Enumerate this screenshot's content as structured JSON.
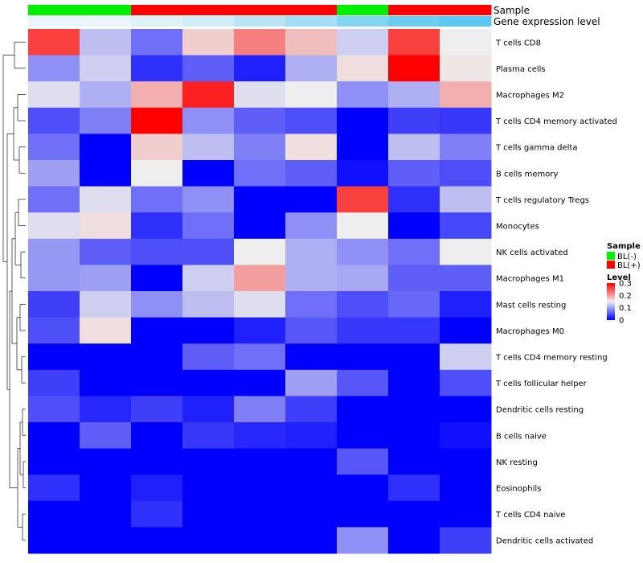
{
  "chart_data": {
    "type": "heatmap",
    "annotation_tracks": [
      {
        "name": "Sample",
        "values": [
          "BL(-)",
          "BL(-)",
          "BL(+)",
          "BL(+)",
          "BL(+)",
          "BL(+)",
          "BL(-)",
          "BL(+)",
          "BL(+)"
        ]
      },
      {
        "name": "Gene expression level",
        "values": [
          0.02,
          0.02,
          0.06,
          0.12,
          0.22,
          0.32,
          0.45,
          0.55,
          0.62
        ]
      }
    ],
    "rows": [
      "T cells CD8",
      "Plasma cells",
      "Macrophages M2",
      "T cells CD4 memory activated",
      "T cells gamma delta",
      "B cells memory",
      "T cells regulatory  Tregs",
      "Monocytes",
      "NK cells activated",
      "Macrophages M1",
      "Mast cells resting",
      "Macrophages M0",
      "T cells CD4 memory resting",
      "T cells follicular helper",
      "Dendritic cells resting",
      "B cells naive",
      "NK resting",
      "Eosinophils",
      "T cells CD4 naive",
      "Dendritic cells activated"
    ],
    "values": [
      [
        0.26,
        0.12,
        0.07,
        0.17,
        0.22,
        0.18,
        0.13,
        0.26,
        0.15
      ],
      [
        0.09,
        0.13,
        0.03,
        0.06,
        0.02,
        0.11,
        0.16,
        0.3,
        0.155
      ],
      [
        0.14,
        0.11,
        0.19,
        0.28,
        0.14,
        0.15,
        0.09,
        0.11,
        0.19
      ],
      [
        0.05,
        0.08,
        0.3,
        0.09,
        0.06,
        0.05,
        0.0,
        0.04,
        0.035
      ],
      [
        0.07,
        0.0,
        0.17,
        0.12,
        0.08,
        0.16,
        0.0,
        0.12,
        0.08
      ],
      [
        0.1,
        0.0,
        0.15,
        0.0,
        0.07,
        0.06,
        0.01,
        0.06,
        0.05
      ],
      [
        0.07,
        0.14,
        0.07,
        0.09,
        0.0,
        0.0,
        0.26,
        0.03,
        0.12
      ],
      [
        0.14,
        0.16,
        0.03,
        0.07,
        0.0,
        0.09,
        0.15,
        0.0,
        0.045
      ],
      [
        0.095,
        0.06,
        0.05,
        0.05,
        0.15,
        0.11,
        0.09,
        0.07,
        0.15
      ],
      [
        0.095,
        0.1,
        0.0,
        0.13,
        0.2,
        0.11,
        0.105,
        0.06,
        0.06
      ],
      [
        0.04,
        0.13,
        0.09,
        0.12,
        0.14,
        0.07,
        0.05,
        0.065,
        0.02
      ],
      [
        0.05,
        0.16,
        0.0,
        0.0,
        0.02,
        0.055,
        0.035,
        0.035,
        0.0
      ],
      [
        0.0,
        0.0,
        0.0,
        0.06,
        0.07,
        0.0,
        0.0,
        0.0,
        0.13
      ],
      [
        0.04,
        0.0,
        0.0,
        0.0,
        0.0,
        0.1,
        0.055,
        0.0,
        0.05
      ],
      [
        0.05,
        0.025,
        0.04,
        0.02,
        0.08,
        0.04,
        0.0,
        0.0,
        0.0
      ],
      [
        0.0,
        0.06,
        0.0,
        0.035,
        0.025,
        0.02,
        0.0,
        0.0,
        0.01
      ],
      [
        0.0,
        0.0,
        0.0,
        0.0,
        0.0,
        0.0,
        0.055,
        0.0,
        0.0
      ],
      [
        0.03,
        0.0,
        0.02,
        0.0,
        0.0,
        0.0,
        0.0,
        0.03,
        0.0
      ],
      [
        0.0,
        0.0,
        0.03,
        0.0,
        0.0,
        0.0,
        0.0,
        0.0,
        0.0
      ],
      [
        0.0,
        0.0,
        0.0,
        0.0,
        0.0,
        0.0,
        0.09,
        0.0,
        0.04
      ]
    ],
    "color_scale": {
      "min": 0,
      "mid": 0.15,
      "max": 0.3,
      "low_color": "#0000ff",
      "mid_color": "#eeeeee",
      "high_color": "#ff0000"
    },
    "legend": {
      "sample_title": "Sample",
      "sample_items": [
        {
          "label": "BL(-)",
          "color": "#00ee00"
        },
        {
          "label": "BL(+)",
          "color": "#ff0000"
        }
      ],
      "level_title": "Level",
      "level_ticks": [
        "0.3",
        "0.2",
        "0.1",
        "0"
      ],
      "level_tick_values": [
        0.3,
        0.2,
        0.1,
        0
      ],
      "placement": "right"
    },
    "gene_expression_scale": {
      "low_color": "#eef6fa",
      "high_color": "#5ac8f0"
    },
    "row_dendrogram": true,
    "column_dendrogram": false
  }
}
